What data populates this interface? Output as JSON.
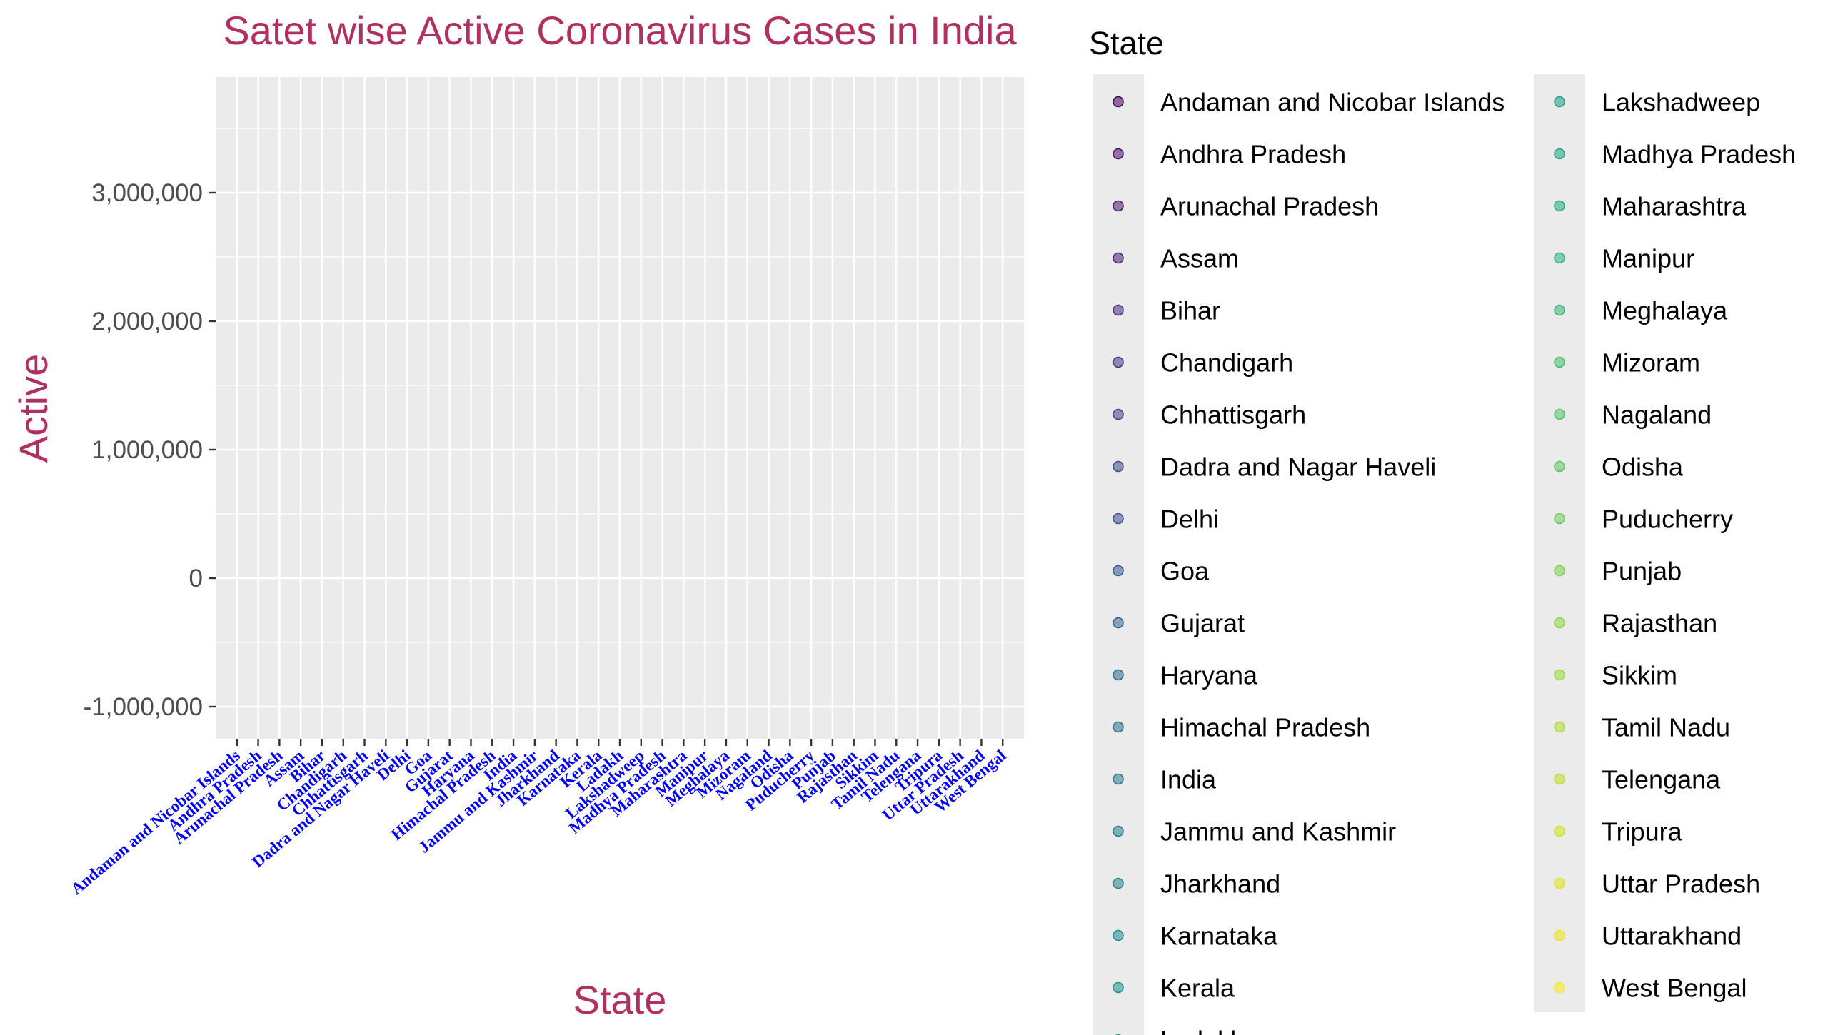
{
  "chart_data": {
    "type": "scatter",
    "title": "Satet wise Active Coronavirus Cases in India",
    "xlabel": "State",
    "ylabel": "Active",
    "ylim": [
      -1250000,
      3900000
    ],
    "y_ticks": [
      -1000000,
      0,
      1000000,
      2000000,
      3000000
    ],
    "y_tick_labels": [
      "-1,000,000",
      "0",
      "1,000,000",
      "2,000,000",
      "3,000,000"
    ],
    "grid": true,
    "legend": {
      "title": "State",
      "placement": "right",
      "columns": 2
    },
    "categories": [
      "Andaman and Nicobar Islands",
      "Andhra Pradesh",
      "Arunachal Pradesh",
      "Assam",
      "Bihar",
      "Chandigarh",
      "Chhattisgarh",
      "Dadra and Nagar Haveli",
      "Delhi",
      "Goa",
      "Gujarat",
      "Haryana",
      "Himachal Pradesh",
      "India",
      "Jammu and Kashmir",
      "Jharkhand",
      "Karnataka",
      "Kerala",
      "Ladakh",
      "Lakshadweep",
      "Madhya Pradesh",
      "Maharashtra",
      "Manipur",
      "Meghalaya",
      "Mizoram",
      "Nagaland",
      "Odisha",
      "Puducherry",
      "Punjab",
      "Rajasthan",
      "Sikkim",
      "Tamil Nadu",
      "Telengana",
      "Tripura",
      "Uttar Pradesh",
      "Uttarakhand",
      "West Bengal"
    ],
    "colors": [
      "#440154",
      "#470D60",
      "#48186A",
      "#482374",
      "#472D7B",
      "#453781",
      "#424086",
      "#3F4A89",
      "#3B528B",
      "#375B8D",
      "#33638D",
      "#306B8E",
      "#2D718E",
      "#2A788E",
      "#277F8E",
      "#25858E",
      "#228C8D",
      "#20928C",
      "#1F998A",
      "#1FA088",
      "#21A585",
      "#25AC82",
      "#2DB27D",
      "#37B878",
      "#42BE71",
      "#4FC46A",
      "#5CC863",
      "#6BCD5A",
      "#7AD151",
      "#8BD646",
      "#9BD93C",
      "#ADDC30",
      "#BDDF26",
      "#CFE11C",
      "#DFE318",
      "#EFE51C",
      "#FDE725"
    ]
  }
}
